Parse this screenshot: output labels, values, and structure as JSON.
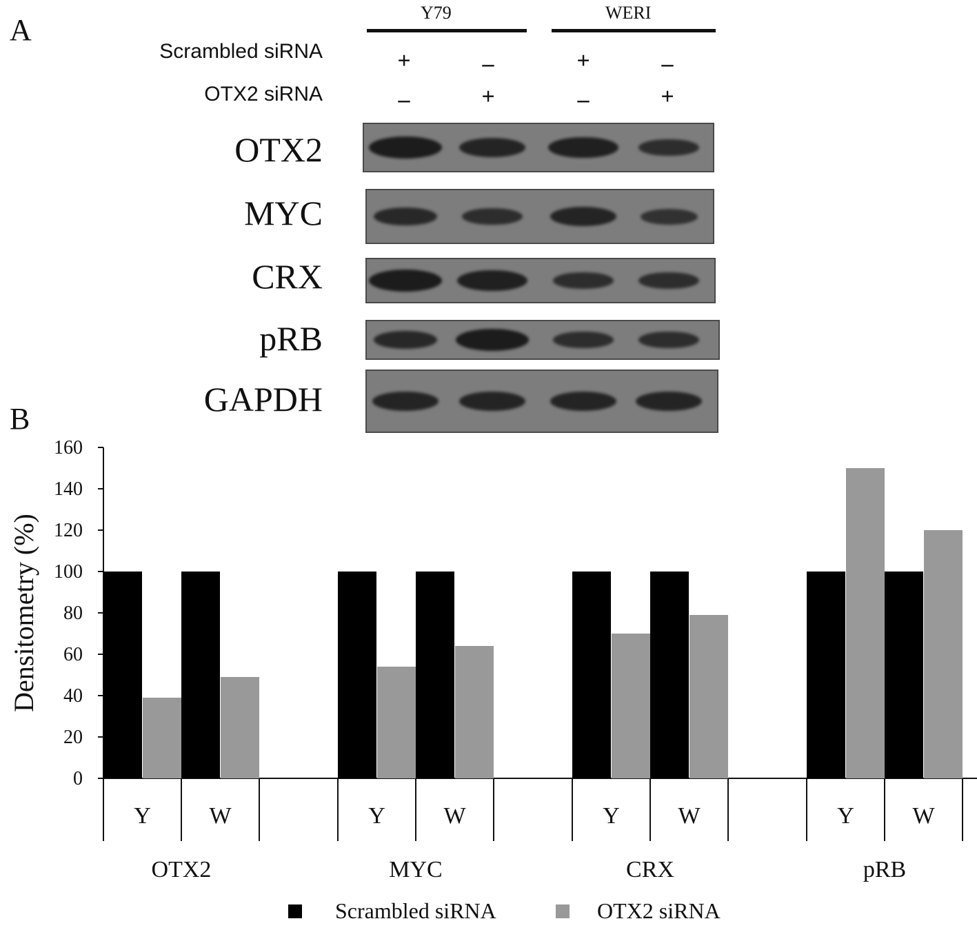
{
  "panel_a": {
    "letter": "A",
    "cell_lines": [
      "Y79",
      "WERI"
    ],
    "conditions": [
      {
        "label": "Scrambled siRNA",
        "signs": [
          "+",
          "–",
          "+",
          "–"
        ]
      },
      {
        "label": "OTX2 siRNA",
        "signs": [
          "–",
          "+",
          "–",
          "+"
        ]
      }
    ],
    "blots": [
      {
        "label": "OTX2",
        "band_intensity": [
          1.0,
          0.8,
          0.9,
          0.6
        ]
      },
      {
        "label": "MYC",
        "band_intensity": [
          0.7,
          0.6,
          0.8,
          0.5
        ]
      },
      {
        "label": "CRX",
        "band_intensity": [
          1.0,
          0.9,
          0.6,
          0.6
        ]
      },
      {
        "label": "pRB",
        "band_intensity": [
          0.7,
          1.0,
          0.6,
          0.6
        ]
      },
      {
        "label": "GAPDH",
        "band_intensity": [
          0.8,
          0.8,
          0.8,
          0.8
        ]
      }
    ]
  },
  "panel_b": {
    "letter": "B"
  },
  "chart_data": {
    "type": "bar",
    "ylabel": "Densitometry (%)",
    "ylim": [
      0,
      160
    ],
    "yticks": [
      0,
      20,
      40,
      60,
      80,
      100,
      120,
      140,
      160
    ],
    "groups": [
      "OTX2",
      "MYC",
      "CRX",
      "pRB"
    ],
    "subgroups": [
      "Y",
      "W"
    ],
    "series": [
      {
        "name": "Scrambled siRNA",
        "color": "#000000",
        "values": [
          100,
          100,
          100,
          100,
          100,
          100,
          100,
          100
        ]
      },
      {
        "name": "OTX2 siRNA",
        "color": "#999999",
        "values": [
          39,
          49,
          54,
          64,
          70,
          79,
          150,
          120
        ]
      }
    ],
    "grid": false,
    "legend": "bottom"
  }
}
